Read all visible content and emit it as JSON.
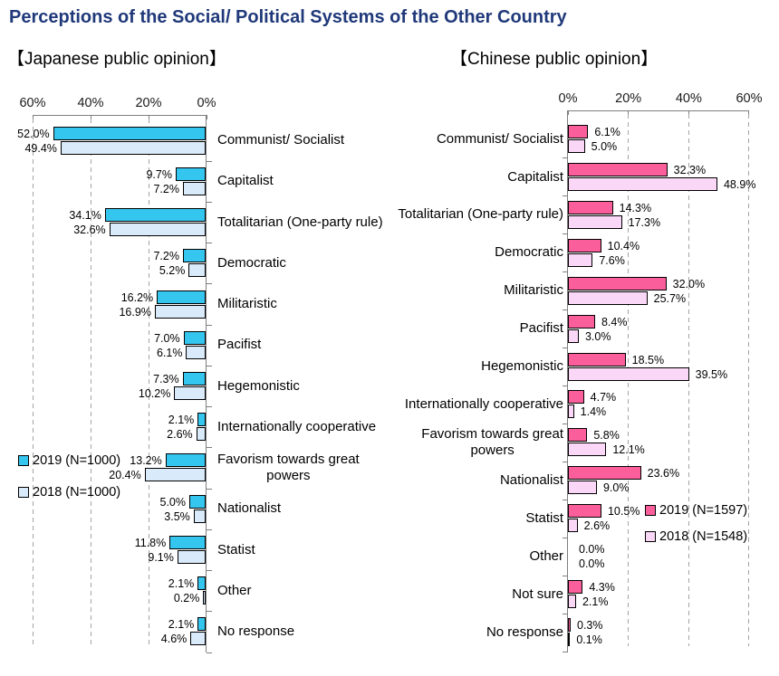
{
  "title": "Perceptions of the Social/ Political Systems of the Other Country",
  "chart_data": [
    {
      "type": "bar",
      "orientation": "horizontal",
      "subtitle": "【Japanese public opinion】",
      "bars_direction": "right-to-left",
      "axis": {
        "range": [
          0,
          60
        ],
        "position": "top",
        "tick_labels": [
          "60%",
          "40%",
          "20%",
          "0%"
        ],
        "gridlines": "dashed"
      },
      "legend_position": "inside-left",
      "value_label_format": "0.0%",
      "categories": [
        "Communist/ Socialist",
        "Capitalist",
        "Totalitarian (One-party rule)",
        "Democratic",
        "Militaristic",
        "Pacifist",
        "Hegemonistic",
        "Internationally cooperative",
        "Favorism towards great\npowers",
        "Nationalist",
        "Statist",
        "Other",
        "No response"
      ],
      "series": [
        {
          "name": "2019 (N=1000)",
          "color": "#35C6F0",
          "values": [
            52.0,
            9.7,
            34.1,
            7.2,
            16.2,
            7.0,
            7.3,
            2.1,
            13.2,
            5.0,
            11.8,
            2.1,
            2.1
          ]
        },
        {
          "name": "2018 (N=1000)",
          "color": "#D9EBFA",
          "values": [
            49.4,
            7.2,
            32.6,
            5.2,
            16.9,
            6.1,
            10.2,
            2.6,
            20.4,
            3.5,
            9.1,
            0.2,
            4.6
          ]
        }
      ]
    },
    {
      "type": "bar",
      "orientation": "horizontal",
      "subtitle": "【Chinese public opinion】",
      "bars_direction": "left-to-right",
      "axis": {
        "range": [
          0,
          60
        ],
        "position": "top",
        "tick_labels": [
          "0%",
          "20%",
          "40%",
          "60%"
        ],
        "gridlines": "dashed"
      },
      "legend_position": "inside-right",
      "value_label_format": "0.0%",
      "categories": [
        "Communist/ Socialist",
        "Capitalist",
        "Totalitarian (One-party rule)",
        "Democratic",
        "Militaristic",
        "Pacifist",
        "Hegemonistic",
        "Internationally cooperative",
        "Favorism towards great\npowers",
        "Nationalist",
        "Statist",
        "Other",
        "Not sure",
        "No response"
      ],
      "series": [
        {
          "name": "2019 (N=1597)",
          "color": "#FA5E9B",
          "values": [
            6.1,
            32.3,
            14.3,
            10.4,
            32.0,
            8.4,
            18.5,
            4.7,
            5.8,
            23.6,
            10.5,
            0.0,
            4.3,
            0.3
          ]
        },
        {
          "name": "2018 (N=1548)",
          "color": "#FAD7F6",
          "values": [
            5.0,
            48.9,
            17.3,
            7.6,
            25.7,
            3.0,
            39.5,
            1.4,
            12.1,
            9.0,
            2.6,
            0.0,
            2.1,
            0.1
          ]
        }
      ]
    }
  ]
}
